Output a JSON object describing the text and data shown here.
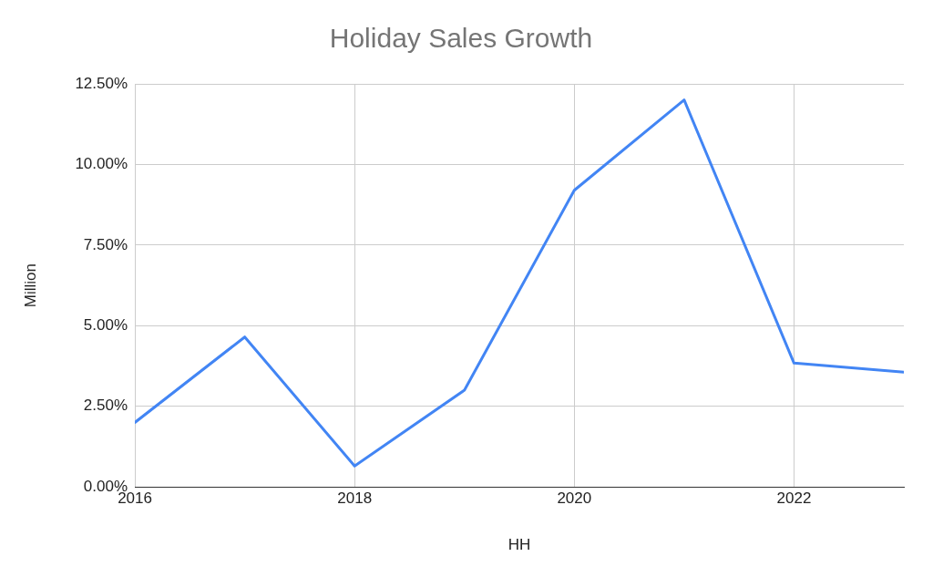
{
  "chart_data": {
    "type": "line",
    "title": "Holiday Sales Growth",
    "xlabel": "HH",
    "ylabel": "Million",
    "x": [
      2016,
      2017,
      2018,
      2019,
      2020,
      2021,
      2022,
      2023
    ],
    "series": [
      {
        "color": "#4285f4",
        "values": [
          2.0,
          4.65,
          0.65,
          3.0,
          9.2,
          12.0,
          3.84,
          3.56
        ]
      }
    ],
    "xlim": [
      2016,
      2023
    ],
    "xticks": [
      2016,
      2018,
      2020,
      2022
    ],
    "ylim": [
      0,
      12.5
    ],
    "yticks": [
      {
        "value": 0,
        "label": "0.00%"
      },
      {
        "value": 2.5,
        "label": "2.50%"
      },
      {
        "value": 5,
        "label": "5.00%"
      },
      {
        "value": 7.5,
        "label": "7.50%"
      },
      {
        "value": 10,
        "label": "10.00%"
      },
      {
        "value": 12.5,
        "label": "12.50%"
      }
    ],
    "grid": true,
    "legend": false,
    "marker": "none",
    "line_style": "solid"
  }
}
